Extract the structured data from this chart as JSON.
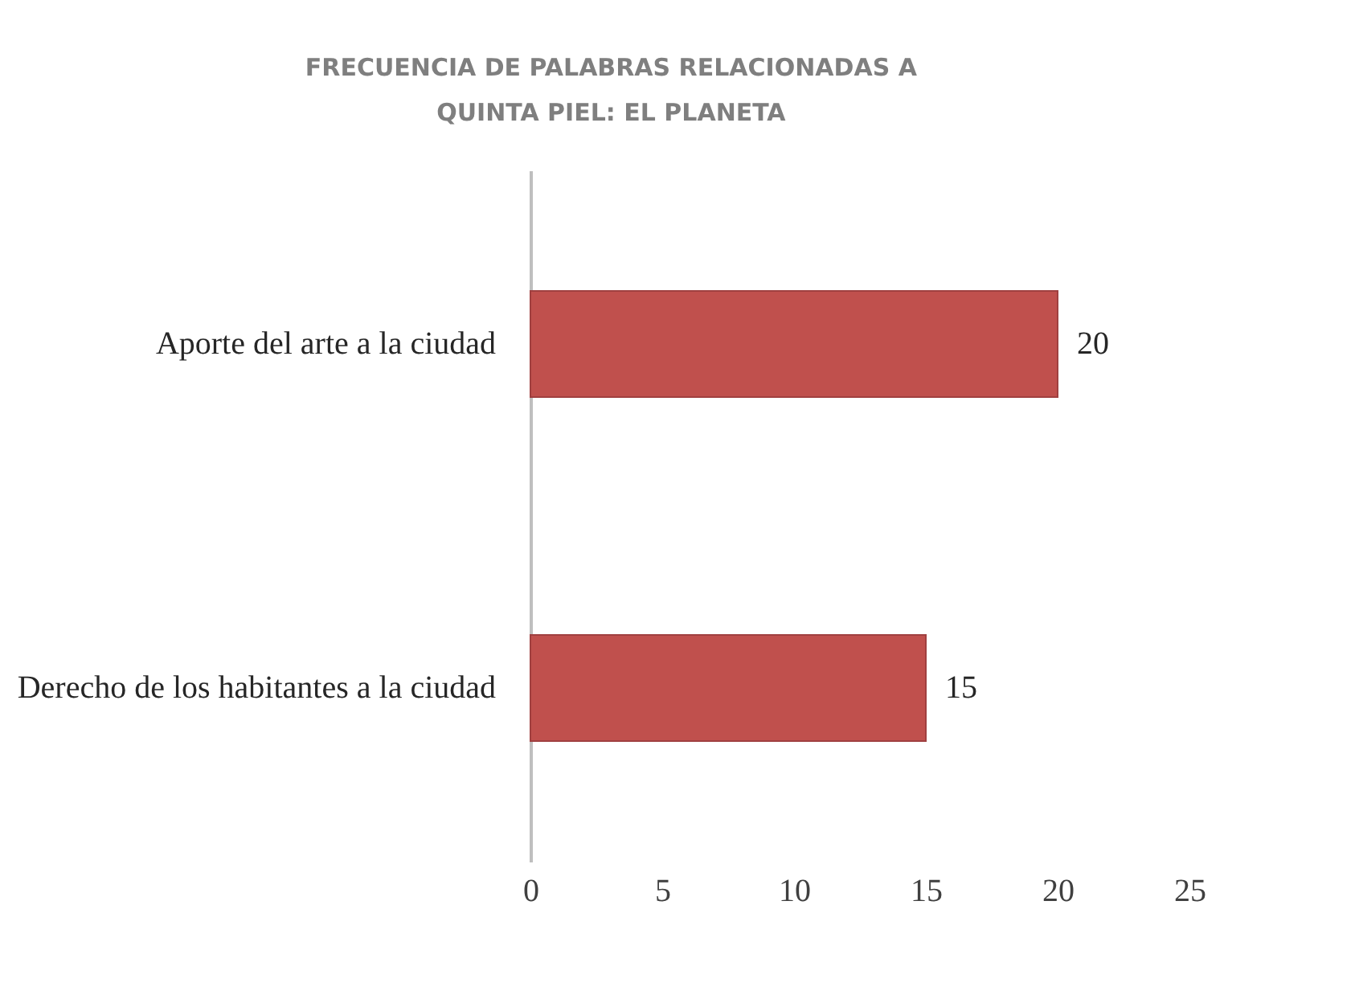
{
  "chart_data": {
    "type": "bar",
    "orientation": "horizontal",
    "title": "FRECUENCIA DE PALABRAS RELACIONADAS A QUINTA PIEL: EL PLANETA",
    "categories": [
      "Aporte del arte a la ciudad",
      "Derecho de los habitantes a la ciudad"
    ],
    "values": [
      20,
      15
    ],
    "color": "#c0504d",
    "xlim": [
      0,
      25
    ],
    "xticks": [
      0,
      5,
      10,
      15,
      20,
      25
    ],
    "data_labels": true,
    "grid": false
  }
}
